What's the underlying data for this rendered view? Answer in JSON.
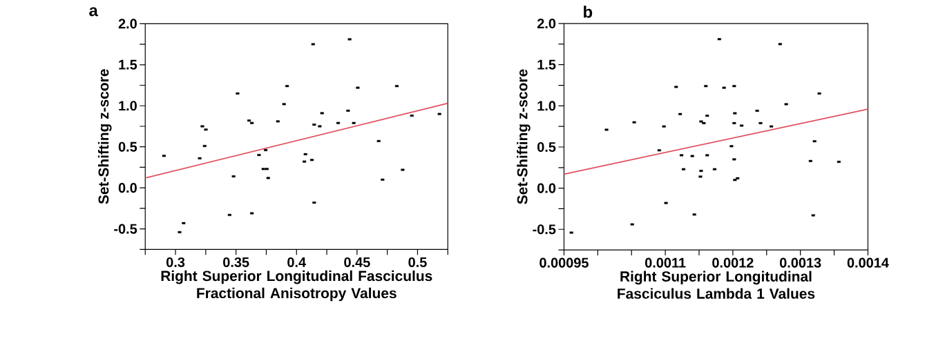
{
  "chart_data": [
    {
      "type": "scatter",
      "title": "a",
      "xlabel": "Right Superior Longitudinal Fasciculus Fractional Anisotropy Values",
      "ylabel": "Set-Shifting z-score",
      "marker": "square",
      "grid": false,
      "xlim": [
        0.275,
        0.525
      ],
      "xticks": [
        {
          "value": 0.275,
          "label": null
        },
        0.3,
        {
          "value": 0.325,
          "label": null
        },
        0.35,
        {
          "value": 0.375,
          "label": null
        },
        0.4,
        {
          "value": 0.425,
          "label": null
        },
        0.45,
        {
          "value": 0.475,
          "label": null
        },
        0.5,
        {
          "value": 0.525,
          "label": null
        }
      ],
      "ylim": [
        -0.75,
        2.0
      ],
      "yticks": [
        {
          "value": -0.75,
          "label": null
        },
        {
          "value": -0.5,
          "label": "-0.5"
        },
        {
          "value": -0.25,
          "label": null
        },
        {
          "value": 0,
          "label": "0.0"
        },
        {
          "value": 0.25,
          "label": null
        },
        {
          "value": 0.5,
          "label": "0.5"
        },
        {
          "value": 0.75,
          "label": null
        },
        {
          "value": 1.0,
          "label": "1.0"
        },
        {
          "value": 1.25,
          "label": null
        },
        {
          "value": 1.5,
          "label": "1.5"
        },
        {
          "value": 1.75,
          "label": null
        },
        {
          "value": 2.0,
          "label": "2.0"
        }
      ],
      "series": [
        {
          "color": "#000000",
          "x": [
            0.2905,
            0.3034,
            0.3067,
            0.32,
            0.3222,
            0.3251,
            0.3241,
            0.3447,
            0.348,
            0.3513,
            0.3608,
            0.3631,
            0.3631,
            0.369,
            0.3726,
            0.3755,
            0.3745,
            0.3766,
            0.3846,
            0.3897,
            0.3922,
            0.4065,
            0.4074,
            0.4127,
            0.4137,
            0.4146,
            0.4146,
            0.4192,
            0.4211,
            0.4344,
            0.4426,
            0.4439,
            0.4473,
            0.4506,
            0.4679,
            0.4711,
            0.4829,
            0.4877,
            0.4953,
            0.5181
          ],
          "values": [
            0.39,
            -0.54,
            -0.43,
            0.36,
            0.75,
            0.71,
            0.51,
            -0.33,
            0.14,
            1.15,
            0.82,
            0.79,
            -0.31,
            0.4,
            0.23,
            0.23,
            0.46,
            0.12,
            0.81,
            1.02,
            1.24,
            0.32,
            0.41,
            0.34,
            1.75,
            0.77,
            -0.18,
            0.75,
            0.91,
            0.79,
            0.94,
            1.81,
            0.79,
            1.22,
            0.57,
            0.1,
            1.24,
            0.22,
            0.88,
            0.9
          ]
        },
        {
          "type": "line",
          "marker": "none",
          "color": "#e0505f",
          "x": [
            0.275,
            0.525
          ],
          "values": [
            0.12,
            1.03
          ]
        }
      ]
    },
    {
      "type": "scatter",
      "title": "b",
      "xlabel": "Right Superior Longitudinal Fasciculus Lambda 1 Values",
      "ylabel": "Set-Shifting z-score",
      "marker": "square",
      "grid": false,
      "xlim": [
        0.00095,
        0.0014
      ],
      "xticks": [
        0.00095,
        {
          "value": 0.001,
          "label": null
        },
        {
          "value": 0.00105,
          "label": null
        },
        0.0011,
        {
          "value": 0.00115,
          "label": null
        },
        0.0012,
        {
          "value": 0.00125,
          "label": null
        },
        0.0013,
        {
          "value": 0.00135,
          "label": null
        },
        0.0014
      ],
      "ylim": [
        -0.75,
        2.0
      ],
      "yticks": [
        {
          "value": -0.75,
          "label": null
        },
        {
          "value": -0.5,
          "label": "-0.5"
        },
        {
          "value": -0.25,
          "label": null
        },
        {
          "value": 0,
          "label": "0.0"
        },
        {
          "value": 0.25,
          "label": null
        },
        {
          "value": 0.5,
          "label": "0.5"
        },
        {
          "value": 0.75,
          "label": null
        },
        {
          "value": 1.0,
          "label": "1.0"
        },
        {
          "value": 1.25,
          "label": null
        },
        {
          "value": 1.5,
          "label": "1.5"
        },
        {
          "value": 1.75,
          "label": null
        },
        {
          "value": 2.0,
          "label": "2.0"
        }
      ],
      "series": [
        {
          "color": "#000000",
          "x": [
            0.000961,
            0.001013,
            0.001051,
            0.001054,
            0.001091,
            0.001098,
            0.001101,
            0.001116,
            0.001122,
            0.001124,
            0.001127,
            0.00114,
            0.001143,
            0.001152,
            0.001153,
            0.001153,
            0.001157,
            0.00116,
            0.001162,
            0.001162,
            0.001173,
            0.00118,
            0.001187,
            0.001198,
            0.001202,
            0.001202,
            0.001202,
            0.001203,
            0.001203,
            0.001207,
            0.001213,
            0.001236,
            0.001241,
            0.001257,
            0.00127,
            0.001279,
            0.001315,
            0.001319,
            0.001321,
            0.001328,
            0.001357
          ],
          "values": [
            -0.54,
            0.71,
            -0.44,
            0.8,
            0.46,
            0.75,
            -0.18,
            1.23,
            0.9,
            0.4,
            0.23,
            0.39,
            -0.32,
            0.14,
            0.21,
            0.81,
            0.79,
            1.24,
            0.88,
            0.4,
            0.23,
            1.81,
            1.22,
            0.51,
            1.24,
            0.79,
            0.35,
            0.91,
            0.1,
            0.12,
            0.76,
            0.94,
            0.79,
            0.75,
            1.75,
            1.02,
            0.33,
            -0.33,
            0.57,
            1.15,
            0.32
          ]
        },
        {
          "type": "line",
          "marker": "none",
          "color": "#e0505f",
          "x": [
            0.00095,
            0.0014
          ],
          "values": [
            0.17,
            0.96
          ]
        }
      ]
    }
  ]
}
